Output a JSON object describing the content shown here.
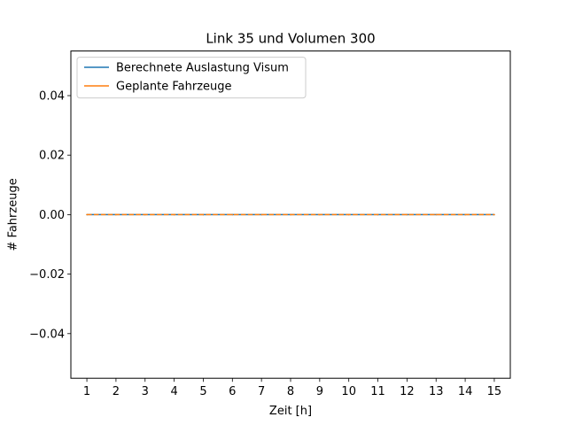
{
  "chart_data": {
    "type": "line",
    "title": "Link 35 und Volumen 300",
    "xlabel": "Zeit [h]",
    "ylabel": "# Fahrzeuge",
    "x": [
      1,
      2,
      3,
      4,
      5,
      6,
      7,
      8,
      9,
      10,
      11,
      12,
      13,
      14,
      15
    ],
    "xlim": [
      0.45,
      15.55
    ],
    "ylim": [
      -0.055,
      0.055
    ],
    "yticks": [
      -0.04,
      -0.02,
      0.0,
      0.02,
      0.04
    ],
    "ytick_labels": [
      "−0.04",
      "−0.02",
      "0.00",
      "0.02",
      "0.04"
    ],
    "grid": false,
    "legend_position": "upper-left",
    "series": [
      {
        "name": "Berechnete Auslastung Visum",
        "color": "#1f77b4",
        "style": "solid",
        "values": [
          0,
          0,
          0,
          0,
          0,
          0,
          0,
          0,
          0,
          0,
          0,
          0,
          0,
          0,
          0
        ]
      },
      {
        "name": "Geplante Fahrzeuge",
        "color": "#ff7f0e",
        "style": "dashed",
        "values": [
          0,
          0,
          0,
          0,
          0,
          0,
          0,
          0,
          0,
          0,
          0,
          0,
          0,
          0,
          0
        ]
      }
    ]
  }
}
